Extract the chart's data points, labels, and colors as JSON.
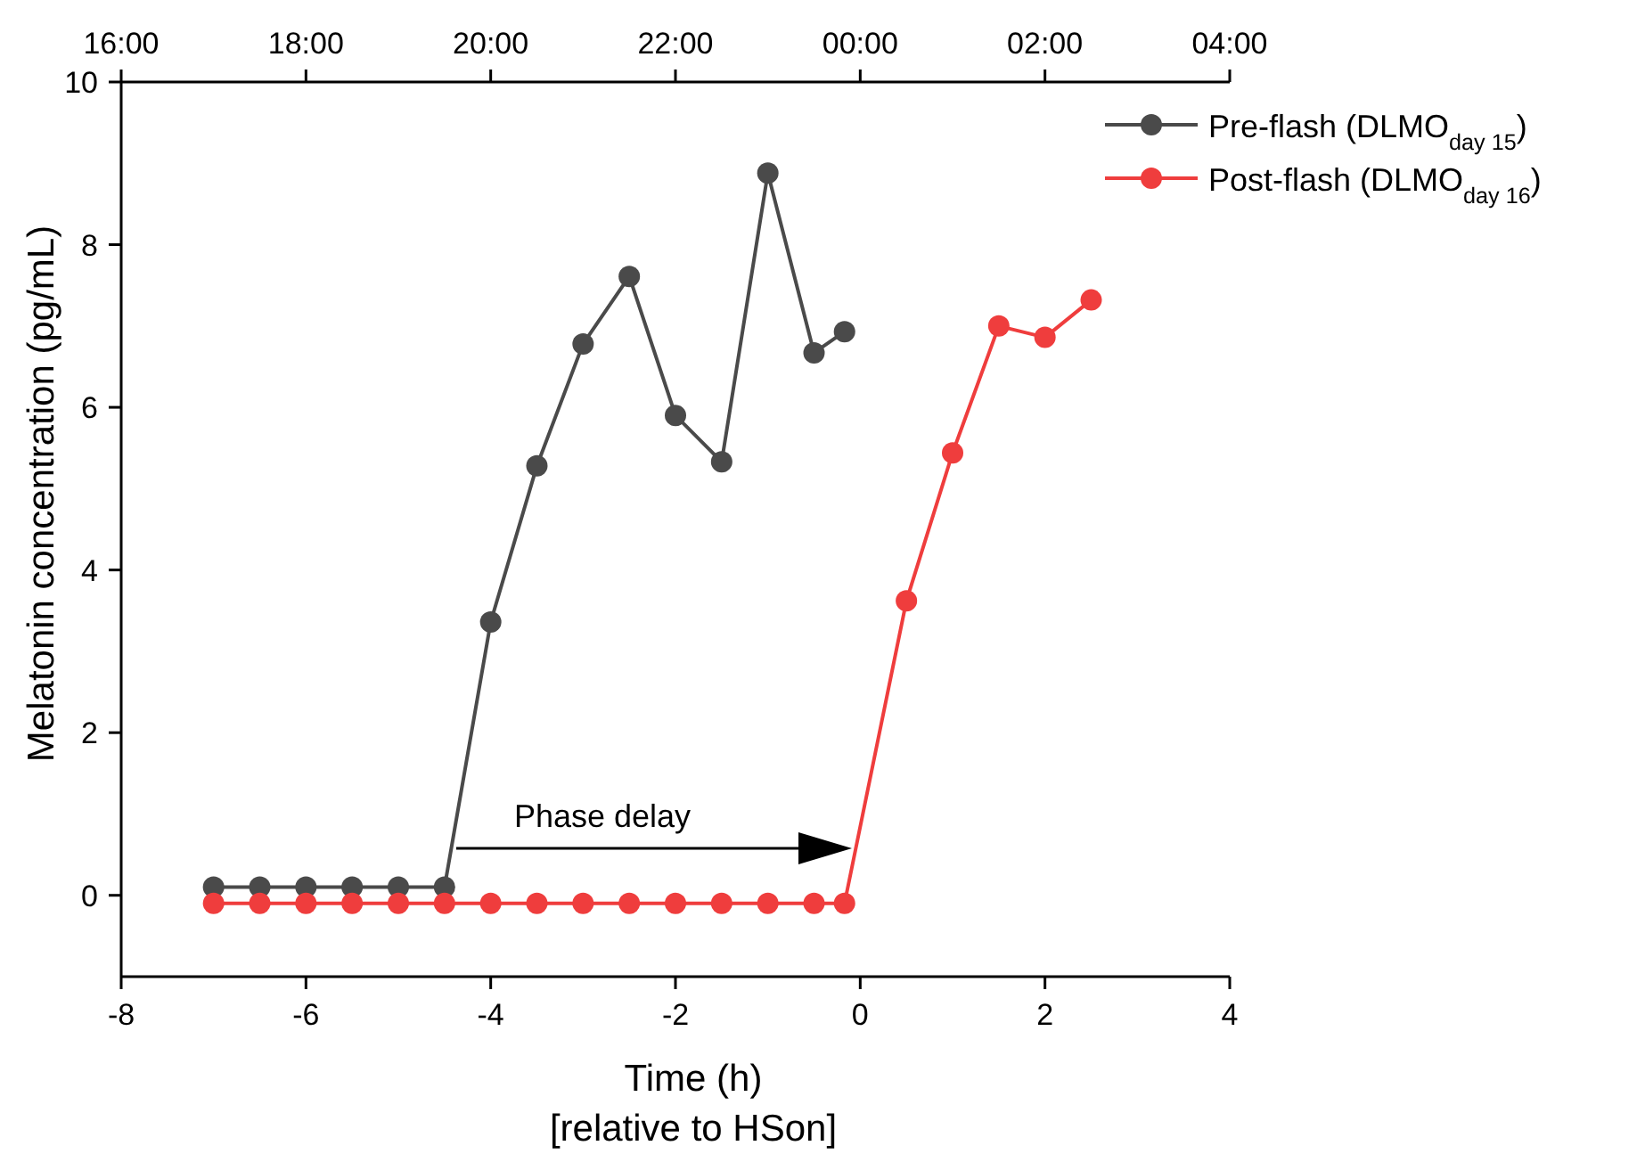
{
  "chart_data": {
    "type": "line",
    "xlabel": "Time (h)\n[relative to HSon]",
    "ylabel": "Melatonin concentration (pg/mL)",
    "xlim": [
      -8,
      4
    ],
    "xticks": [
      -8,
      -6,
      -4,
      -2,
      0,
      2,
      4
    ],
    "ylim": [
      -1,
      10
    ],
    "yticks": [
      0,
      2,
      4,
      6,
      8,
      10
    ],
    "x2lim": [
      "2000-01-01T16:00",
      "2000-01-02T04:00"
    ],
    "x2ticks": [
      {
        "value": "2000-01-01T16:00",
        "label": "16:00"
      },
      {
        "value": "2000-01-01T18:00",
        "label": "18:00"
      },
      {
        "value": "2000-01-01T20:00",
        "label": "20:00"
      },
      {
        "value": "2000-01-01T22:00",
        "label": "22:00"
      },
      {
        "value": "2000-01-02T00:00",
        "label": "00:00"
      },
      {
        "value": "2000-01-02T02:00",
        "label": "02:00"
      },
      {
        "value": "2000-01-02T04:00",
        "label": "04:00"
      }
    ],
    "marker": "circle",
    "line_style": "solid",
    "grid": false,
    "legend": "top right",
    "annotations": [
      "Phase delay"
    ],
    "series": [
      {
        "name": "Pre-flash (DLMO$_{day 15}$)",
        "color": "#4a4a4a",
        "x": [
          -7,
          -6.5,
          -6,
          -5.5,
          -5,
          -4.5,
          -4,
          -3.5,
          -3,
          -2.5,
          -2,
          -1.5,
          -1,
          -0.5,
          -0.17
        ],
        "values": [
          0.1,
          0.1,
          0.1,
          0.1,
          0.1,
          0.1,
          3.36,
          5.28,
          6.78,
          7.61,
          5.9,
          5.33,
          8.88,
          6.67,
          6.93
        ]
      },
      {
        "name": "Post-flash (DLMO$_{day 16}$)",
        "color": "#ef3d3d",
        "x": [
          -7,
          -6.5,
          -6,
          -5.5,
          -5,
          -4.5,
          -4,
          -3.5,
          -3,
          -2.5,
          -2,
          -1.5,
          -1,
          -0.5,
          -0.17,
          0.5,
          1,
          1.5,
          2,
          2.5
        ],
        "values": [
          -0.1,
          -0.1,
          -0.1,
          -0.1,
          -0.1,
          -0.1,
          -0.1,
          -0.1,
          -0.1,
          -0.1,
          -0.1,
          -0.1,
          -0.1,
          -0.1,
          -0.1,
          3.62,
          5.44,
          7.0,
          6.86,
          7.32
        ]
      }
    ]
  }
}
